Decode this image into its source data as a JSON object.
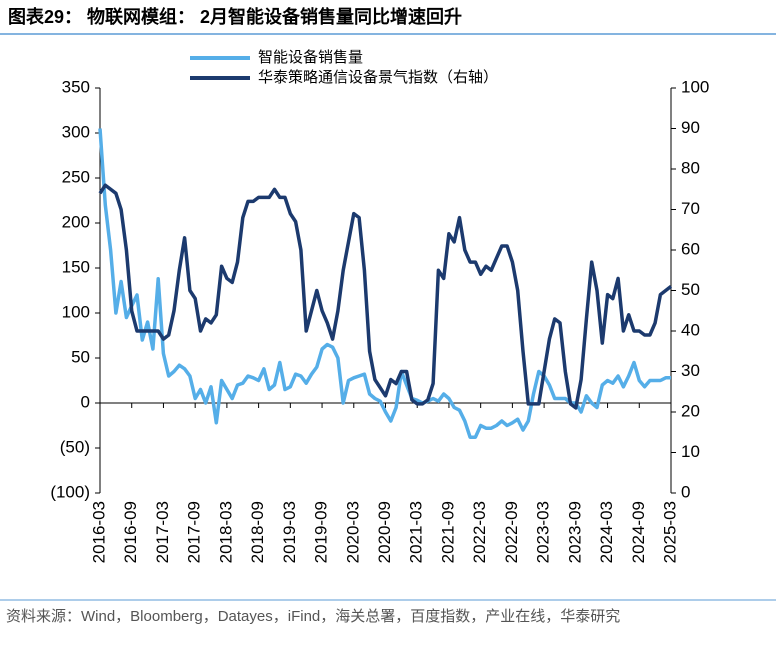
{
  "chart_data": {
    "type": "line",
    "title": "图表29：  物联网模组：  2月智能设备销售量同比增速回升",
    "source": "资料来源：Wind，Bloomberg，Datayes，iFind，海关总署，百度指数，产业在线，华泰研究",
    "categories": [
      "2016-03",
      null,
      null,
      null,
      null,
      null,
      "2016-09",
      null,
      null,
      null,
      null,
      null,
      "2017-03",
      null,
      null,
      null,
      null,
      null,
      "2017-09",
      null,
      null,
      null,
      null,
      null,
      "2018-03",
      null,
      null,
      null,
      null,
      null,
      "2018-09",
      null,
      null,
      null,
      null,
      null,
      "2019-03",
      null,
      null,
      null,
      null,
      null,
      "2019-09",
      null,
      null,
      null,
      null,
      null,
      "2020-03",
      null,
      null,
      null,
      null,
      null,
      "2020-09",
      null,
      null,
      null,
      null,
      null,
      "2021-03",
      null,
      null,
      null,
      null,
      null,
      "2021-09",
      null,
      null,
      null,
      null,
      null,
      "2022-03",
      null,
      null,
      null,
      null,
      null,
      "2022-09",
      null,
      null,
      null,
      null,
      null,
      "2023-03",
      null,
      null,
      null,
      null,
      null,
      "2023-09",
      null,
      null,
      null,
      null,
      null,
      "2024-03",
      null,
      null,
      null,
      null,
      null,
      "2024-09",
      null,
      null,
      null,
      null,
      null,
      "2025-03"
    ],
    "series": [
      {
        "name": "智能设备销售量",
        "color": "#55aee8",
        "axis": "y",
        "values": [
          305,
          220,
          170,
          100,
          135,
          95,
          108,
          120,
          70,
          90,
          60,
          138,
          55,
          30,
          35,
          42,
          38,
          30,
          5,
          15,
          0,
          18,
          -22,
          25,
          15,
          5,
          20,
          22,
          30,
          28,
          25,
          38,
          15,
          20,
          45,
          15,
          18,
          32,
          30,
          22,
          32,
          40,
          60,
          65,
          62,
          50,
          0,
          25,
          28,
          30,
          32,
          10,
          5,
          2,
          -10,
          -20,
          -5,
          35,
          20,
          5,
          3,
          0,
          2,
          5,
          2,
          10,
          5,
          -5,
          -8,
          -20,
          -38,
          -38,
          -25,
          -28,
          -28,
          -25,
          -20,
          -25,
          -22,
          -18,
          -30,
          -20,
          10,
          35,
          30,
          20,
          5,
          5,
          5,
          0,
          0,
          -10,
          8,
          0,
          -5,
          20,
          25,
          22,
          30,
          18,
          30,
          45,
          25,
          18,
          25,
          25,
          25,
          28,
          28
        ]
      },
      {
        "name": "华泰策略通信设备景气指数（右轴）",
        "color": "#1c3a6e",
        "axis": "y2",
        "values": [
          74,
          76,
          75,
          74,
          70,
          60,
          45,
          40,
          40,
          40,
          40,
          40,
          38,
          39,
          45,
          55,
          63,
          50,
          48,
          40,
          43,
          42,
          44,
          56,
          53,
          52,
          57,
          68,
          72,
          72,
          73,
          73,
          73,
          75,
          73,
          73,
          69,
          67,
          60,
          40,
          45,
          50,
          45,
          42,
          38,
          45,
          55,
          62,
          69,
          68,
          55,
          35,
          28,
          26,
          24,
          28,
          27,
          30,
          30,
          23,
          22,
          22,
          23,
          27,
          55,
          53,
          64,
          62,
          68,
          60,
          57,
          57,
          54,
          56,
          55,
          58,
          61,
          61,
          57,
          50,
          35,
          22,
          22,
          22,
          30,
          38,
          43,
          42,
          30,
          22,
          21,
          28,
          43,
          57,
          50,
          37,
          49,
          48,
          53,
          40,
          44,
          40,
          40,
          39,
          39,
          42,
          49,
          50,
          51
        ]
      }
    ],
    "ylim": [
      -100,
      350
    ],
    "yticks": [
      {
        "value": -100,
        "label": "(100)"
      },
      {
        "value": -50,
        "label": "(50)"
      },
      0,
      50,
      100,
      150,
      200,
      250,
      300,
      350
    ],
    "y2lim": [
      0,
      100
    ],
    "y2ticks": [
      0,
      10,
      20,
      30,
      40,
      50,
      60,
      70,
      80,
      90,
      100
    ]
  }
}
